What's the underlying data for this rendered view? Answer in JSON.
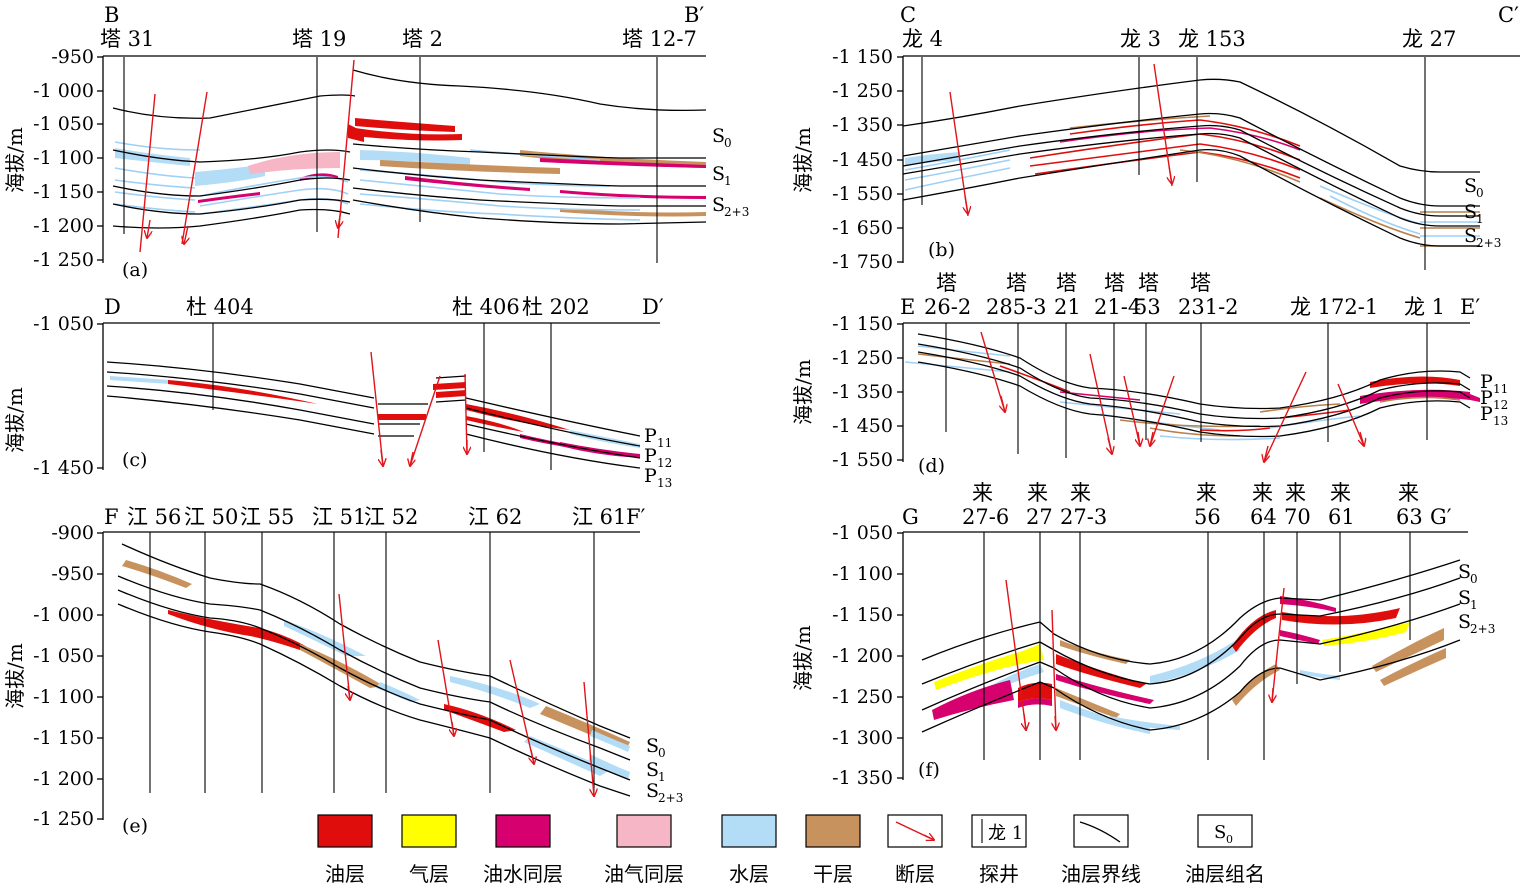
{
  "panels": {
    "a": {
      "tag": "(a)",
      "left": "B",
      "right": "B′",
      "ylabel": "海拔/m",
      "ticks": [
        "-950",
        "-1 000",
        "-1 050",
        "-1 100",
        "-1 150",
        "-1 200",
        "-1 250"
      ],
      "wells": [
        "塔 31",
        "塔 19",
        "塔 2",
        "塔 12-7"
      ],
      "layers": [
        "S",
        "S",
        "S"
      ],
      "subs": [
        "0",
        "1",
        "2+3"
      ]
    },
    "b": {
      "tag": "(b)",
      "left": "C",
      "right": "C′",
      "ylabel": "海拔/m",
      "ticks": [
        "-1 150",
        "-1 250",
        "-1 350",
        "-1 450",
        "-1 550",
        "-1 650",
        "-1 750"
      ],
      "wells": [
        "龙 4",
        "龙 3",
        "龙 153",
        "龙 27"
      ],
      "layers": [
        "S",
        "S",
        "S"
      ],
      "subs": [
        "0",
        "1",
        "2+3"
      ]
    },
    "c": {
      "tag": "(c)",
      "left": "D",
      "right": "D′",
      "ylabel": "海拔/m",
      "ticks": [
        "-1 050",
        "-1 450"
      ],
      "wells": [
        "杜 404",
        "杜 406",
        "杜 202"
      ],
      "layers": [
        "P",
        "P",
        "P"
      ],
      "subs": [
        "11",
        "12",
        "13"
      ]
    },
    "d": {
      "tag": "(d)",
      "left": "E",
      "right": "E′",
      "ylabel": "海拔/m",
      "ticks": [
        "-1 150",
        "-1 250",
        "-1 350",
        "-1 450",
        "-1 550"
      ],
      "wells_top": [
        "塔",
        "塔",
        "塔",
        "塔",
        "塔",
        "塔"
      ],
      "wells_bot": [
        "26-2",
        "285-3",
        "21",
        "21-4",
        "53",
        "231-2",
        "龙 172-1",
        "龙 1"
      ],
      "layers": [
        "P",
        "P",
        "P"
      ],
      "subs": [
        "11",
        "12",
        "13"
      ]
    },
    "e": {
      "tag": "(e)",
      "left": "F",
      "right": "F′",
      "ylabel": "海拔/m",
      "ticks": [
        "-900",
        "-950",
        "-1 000",
        "-1 050",
        "-1 100",
        "-1 150",
        "-1 200",
        "-1 250"
      ],
      "wells": [
        "江 56",
        "江 50",
        "江 55",
        "江 51",
        "江 52",
        "江 62",
        "江 61"
      ],
      "layers": [
        "S",
        "S",
        "S"
      ],
      "subs": [
        "0",
        "1",
        "2+3"
      ]
    },
    "f": {
      "tag": "(f)",
      "left": "G",
      "right": "G′",
      "ylabel": "海拔/m",
      "ticks": [
        "-1 050",
        "-1 100",
        "-1 150",
        "-1 200",
        "-1 250",
        "-1 300",
        "-1 350"
      ],
      "wells_top": [
        "来",
        "来",
        "来",
        "来",
        "来",
        "来",
        "来",
        "来"
      ],
      "wells_bot": [
        "27-6",
        "27",
        "27-3",
        "56",
        "64",
        "70",
        "61",
        "63"
      ],
      "layers": [
        "S",
        "S",
        "S"
      ],
      "subs": [
        "0",
        "1",
        "2+3"
      ]
    }
  },
  "legend": {
    "items": [
      "油层",
      "气层",
      "油水同层",
      "油气同层",
      "水层",
      "干层",
      "断层",
      "探井",
      "油层界线",
      "油层组名"
    ],
    "well_sample": "龙 1",
    "group_sample": "S",
    "group_sample_sub": "0"
  },
  "colors": {
    "oil": "#e00d0d",
    "gas": "#ffff00",
    "oil_water": "#d6006e",
    "oil_gas": "#f6b6c6",
    "water": "#b3dcf7",
    "dry": "#c8925e",
    "fault": "#e0141a"
  }
}
